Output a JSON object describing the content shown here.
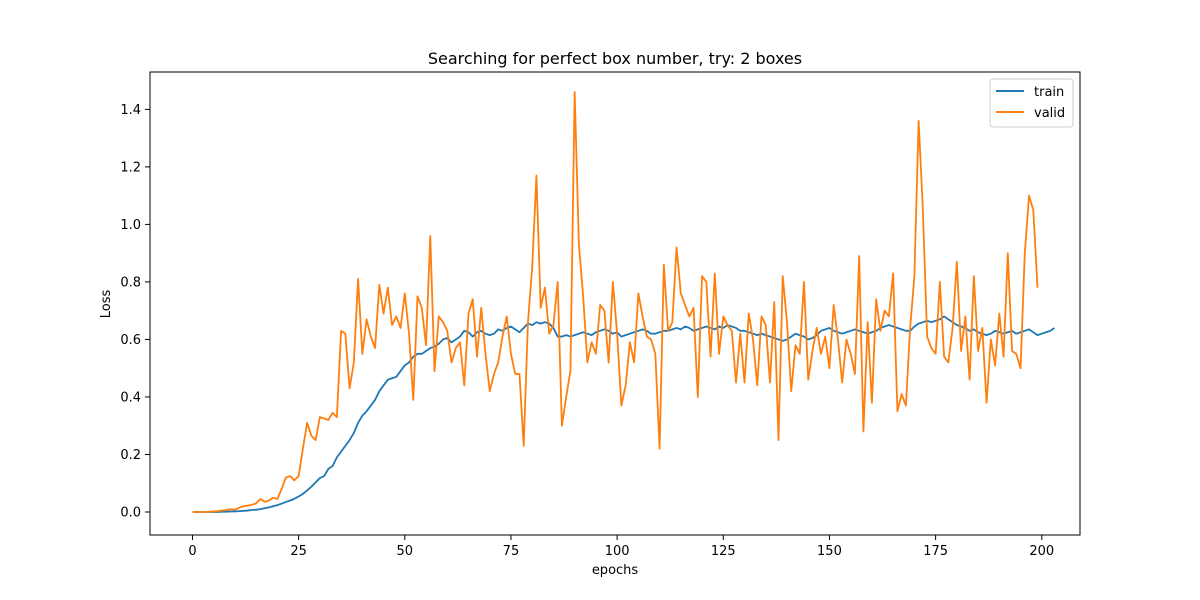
{
  "chart_data": {
    "type": "line",
    "title": "Searching for perfect box number, try: 2 boxes",
    "xlabel": "epochs",
    "ylabel": "Loss",
    "xlim": [
      -10,
      209
    ],
    "ylim": [
      -0.08,
      1.53
    ],
    "xticks": [
      0,
      25,
      50,
      75,
      100,
      125,
      150,
      175,
      200
    ],
    "yticks": [
      0.0,
      0.2,
      0.4,
      0.6,
      0.8,
      1.0,
      1.2,
      1.4
    ],
    "grid": false,
    "legend_position": "top-right",
    "colors": {
      "train": "#1f77b4",
      "valid": "#ff7f0e"
    },
    "series": [
      {
        "name": "train",
        "x_start": 0,
        "values": [
          0.0,
          0.0,
          0.0,
          0.0,
          0.0,
          0.0,
          0.0,
          0.001,
          0.001,
          0.002,
          0.002,
          0.003,
          0.004,
          0.005,
          0.007,
          0.008,
          0.01,
          0.013,
          0.016,
          0.02,
          0.024,
          0.029,
          0.035,
          0.04,
          0.046,
          0.054,
          0.063,
          0.075,
          0.088,
          0.103,
          0.118,
          0.125,
          0.15,
          0.16,
          0.19,
          0.21,
          0.23,
          0.25,
          0.275,
          0.31,
          0.335,
          0.35,
          0.37,
          0.39,
          0.42,
          0.44,
          0.46,
          0.465,
          0.47,
          0.49,
          0.51,
          0.52,
          0.54,
          0.55,
          0.55,
          0.56,
          0.57,
          0.575,
          0.585,
          0.6,
          0.605,
          0.59,
          0.6,
          0.61,
          0.63,
          0.625,
          0.61,
          0.625,
          0.63,
          0.62,
          0.615,
          0.62,
          0.635,
          0.63,
          0.64,
          0.645,
          0.635,
          0.625,
          0.64,
          0.655,
          0.65,
          0.66,
          0.655,
          0.66,
          0.655,
          0.64,
          0.61,
          0.61,
          0.615,
          0.61,
          0.615,
          0.62,
          0.625,
          0.62,
          0.615,
          0.625,
          0.63,
          0.635,
          0.63,
          0.62,
          0.625,
          0.61,
          0.615,
          0.62,
          0.625,
          0.63,
          0.635,
          0.63,
          0.62,
          0.62,
          0.625,
          0.63,
          0.63,
          0.635,
          0.64,
          0.635,
          0.645,
          0.64,
          0.63,
          0.635,
          0.64,
          0.645,
          0.64,
          0.635,
          0.645,
          0.64,
          0.65,
          0.645,
          0.64,
          0.63,
          0.63,
          0.625,
          0.62,
          0.615,
          0.62,
          0.615,
          0.61,
          0.605,
          0.6,
          0.595,
          0.6,
          0.61,
          0.62,
          0.615,
          0.61,
          0.6,
          0.605,
          0.615,
          0.63,
          0.635,
          0.64,
          0.63,
          0.625,
          0.62,
          0.625,
          0.63,
          0.635,
          0.63,
          0.625,
          0.62,
          0.625,
          0.63,
          0.64,
          0.645,
          0.65,
          0.645,
          0.64,
          0.635,
          0.63,
          0.63,
          0.645,
          0.655,
          0.66,
          0.665,
          0.66,
          0.665,
          0.67,
          0.68,
          0.67,
          0.66,
          0.65,
          0.645,
          0.64,
          0.63,
          0.635,
          0.625,
          0.62,
          0.615,
          0.62,
          0.63,
          0.625,
          0.62,
          0.625,
          0.63,
          0.62,
          0.625,
          0.63,
          0.635,
          0.625,
          0.615,
          0.62,
          0.625,
          0.63,
          0.64
        ]
      },
      {
        "name": "valid",
        "x_start": 0,
        "values": [
          0.0,
          0.0,
          0.0,
          0.0,
          0.001,
          0.002,
          0.003,
          0.005,
          0.007,
          0.01,
          0.008,
          0.015,
          0.02,
          0.022,
          0.025,
          0.03,
          0.045,
          0.035,
          0.04,
          0.05,
          0.045,
          0.08,
          0.12,
          0.125,
          0.11,
          0.125,
          0.22,
          0.31,
          0.265,
          0.25,
          0.33,
          0.325,
          0.32,
          0.345,
          0.33,
          0.63,
          0.62,
          0.43,
          0.52,
          0.81,
          0.55,
          0.67,
          0.61,
          0.57,
          0.79,
          0.69,
          0.78,
          0.65,
          0.68,
          0.64,
          0.76,
          0.62,
          0.39,
          0.75,
          0.71,
          0.58,
          0.96,
          0.49,
          0.68,
          0.66,
          0.63,
          0.52,
          0.57,
          0.59,
          0.44,
          0.69,
          0.74,
          0.54,
          0.71,
          0.55,
          0.42,
          0.48,
          0.52,
          0.61,
          0.68,
          0.55,
          0.48,
          0.48,
          0.23,
          0.66,
          0.85,
          1.17,
          0.71,
          0.78,
          0.62,
          0.65,
          0.8,
          0.3,
          0.4,
          0.49,
          1.46,
          0.93,
          0.75,
          0.52,
          0.59,
          0.55,
          0.72,
          0.7,
          0.52,
          0.8,
          0.62,
          0.37,
          0.44,
          0.59,
          0.52,
          0.76,
          0.68,
          0.61,
          0.6,
          0.55,
          0.22,
          0.86,
          0.63,
          0.66,
          0.92,
          0.76,
          0.72,
          0.68,
          0.71,
          0.4,
          0.82,
          0.8,
          0.54,
          0.83,
          0.55,
          0.68,
          0.65,
          0.63,
          0.45,
          0.62,
          0.45,
          0.69,
          0.6,
          0.44,
          0.68,
          0.65,
          0.45,
          0.73,
          0.25,
          0.82,
          0.66,
          0.42,
          0.58,
          0.55,
          0.8,
          0.46,
          0.56,
          0.64,
          0.55,
          0.61,
          0.5,
          0.72,
          0.6,
          0.45,
          0.6,
          0.55,
          0.48,
          0.89,
          0.28,
          0.66,
          0.38,
          0.74,
          0.63,
          0.7,
          0.68,
          0.83,
          0.35,
          0.41,
          0.37,
          0.64,
          0.82,
          1.36,
          1.05,
          0.61,
          0.57,
          0.55,
          0.8,
          0.54,
          0.52,
          0.64,
          0.87,
          0.56,
          0.68,
          0.46,
          0.82,
          0.56,
          0.64,
          0.38,
          0.6,
          0.51,
          0.69,
          0.54,
          0.9,
          0.56,
          0.55,
          0.5,
          0.9,
          1.1,
          1.05,
          0.78
        ]
      }
    ]
  }
}
